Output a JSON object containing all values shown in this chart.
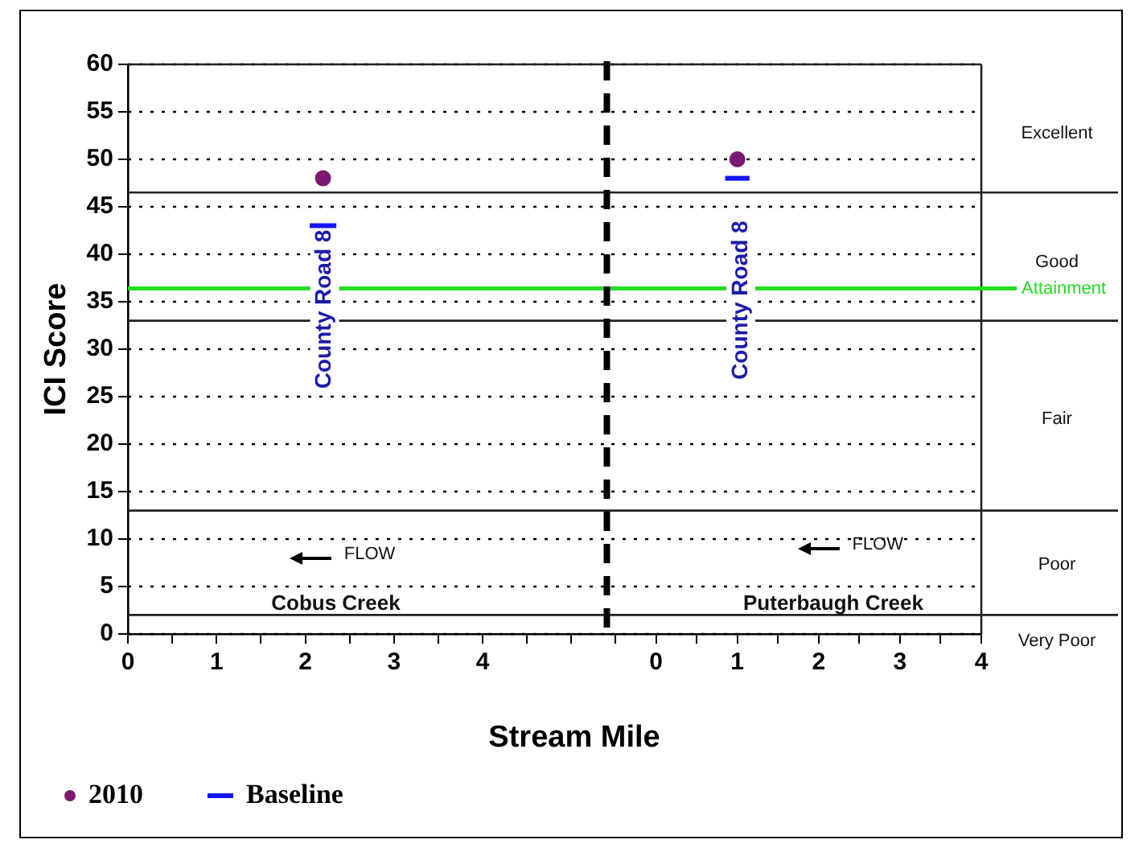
{
  "chart_data": [
    {
      "type": "scatter",
      "xlabel": "Stream Mile",
      "ylabel": "ICI Score",
      "series": [
        {
          "name": "2010",
          "color": "#7b1a72",
          "x": [
            2.2
          ],
          "values": [
            48
          ],
          "marker": "circle"
        },
        {
          "name": "Baseline",
          "type": "line",
          "color": "#1414ff",
          "x": [
            2.05,
            2.35
          ],
          "values": [
            43,
            43
          ],
          "marker": "none"
        }
      ],
      "xlim": [
        0,
        5.45
      ],
      "xticks": [
        0,
        {
          "value": 0.5,
          "label": null
        },
        1,
        {
          "value": 1.5,
          "label": null
        },
        2,
        {
          "value": 2.5,
          "label": null
        },
        3,
        {
          "value": 3.5,
          "label": null
        },
        4,
        {
          "value": 4.5,
          "label": null
        },
        {
          "value": 5,
          "label": null
        }
      ],
      "ylim": [
        0,
        60
      ],
      "yticks": [
        0,
        5,
        10,
        15,
        20,
        25,
        30,
        35,
        40,
        45,
        50,
        55,
        60
      ],
      "grid": "y",
      "legend": "bottom left",
      "ref_lines": [
        {
          "axis": "y",
          "value": 46.5,
          "label": null
        },
        {
          "axis": "y",
          "value": 36.4,
          "label": null,
          "color": "#22dd22"
        },
        {
          "axis": "y",
          "value": 33,
          "label": null
        },
        {
          "axis": "y",
          "value": 13,
          "label": null
        },
        {
          "axis": "y",
          "value": 2,
          "label": null
        },
        {
          "axis": "x",
          "value": 5.4,
          "label": null,
          "color": "#000000",
          "line_style": "dashed"
        }
      ],
      "annotations": [
        "County Road 8",
        "FLOW",
        "Cobus Creek"
      ]
    },
    {
      "type": "scatter",
      "series": [
        {
          "color": "#7b1a72",
          "x": [
            1
          ],
          "values": [
            50
          ],
          "marker": "circle"
        },
        {
          "type": "line",
          "color": "#1414ff",
          "x": [
            0.85,
            1.15
          ],
          "values": [
            48,
            48
          ],
          "marker": "none"
        }
      ],
      "xlim": [
        -0.55,
        4
      ],
      "xticks": [
        {
          "value": -0.5,
          "label": null
        },
        0,
        {
          "value": 0.5,
          "label": null
        },
        1,
        {
          "value": 1.5,
          "label": null
        },
        2,
        {
          "value": 2.5,
          "label": null
        },
        3,
        {
          "value": 3.5,
          "label": null
        },
        4
      ],
      "ylim": [
        0,
        60
      ],
      "yticks": [
        0,
        5,
        10,
        15,
        20,
        25,
        30,
        35,
        40,
        45,
        50,
        55,
        60
      ],
      "tick_labels": "x",
      "grid": "y",
      "ref_lines": [
        {
          "axis": "y",
          "value": 46.5,
          "label": null
        },
        {
          "axis": "y",
          "value": 36.4,
          "label": "Attainment",
          "color": "#22dd22"
        },
        {
          "axis": "y",
          "value": 33,
          "label": null
        },
        {
          "axis": "y",
          "value": 13,
          "label": null
        },
        {
          "axis": "y",
          "value": 2,
          "label": null
        }
      ],
      "annotations": [
        "County Road 8",
        "FLOW",
        "Puterbaugh Creek",
        "Excellent",
        "Good",
        "Fair",
        "Poor",
        "Very Poor"
      ]
    }
  ]
}
